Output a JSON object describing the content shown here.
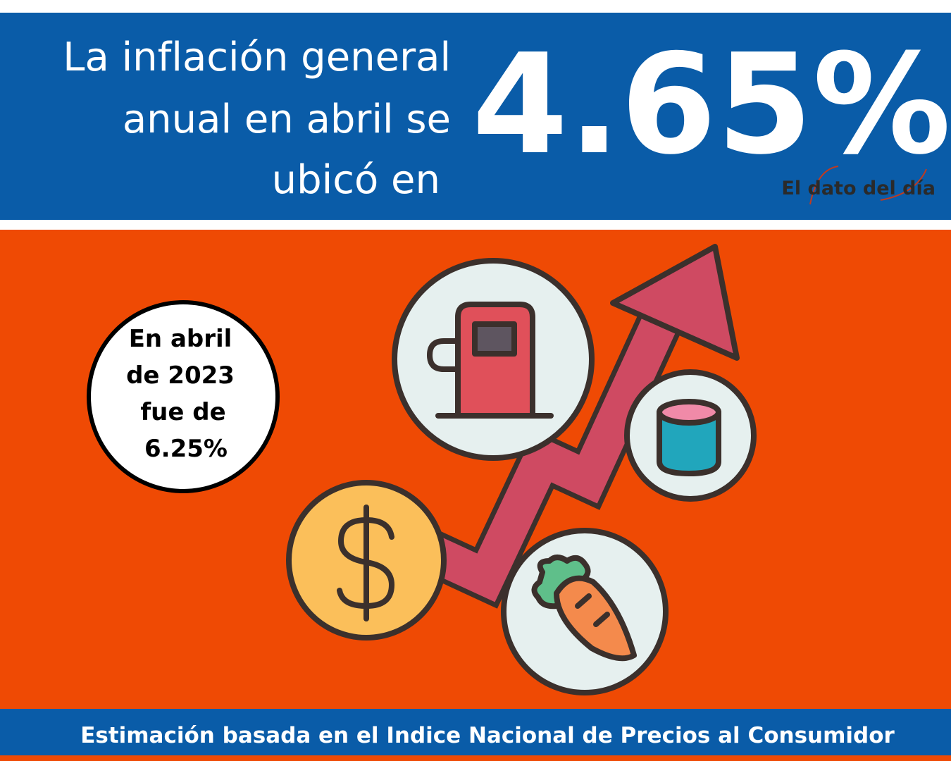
{
  "header": {
    "headline": [
      "La inflación general",
      "anual en abril se",
      "ubicó en"
    ],
    "figure": "4.65%",
    "brand": "El dato del día"
  },
  "note": {
    "lines": [
      "En abril",
      "de 2023",
      "fue de",
      "6.25%"
    ]
  },
  "footer": {
    "source": "Estimación basada en el Indice Nacional de Precios al Consumidor"
  }
}
